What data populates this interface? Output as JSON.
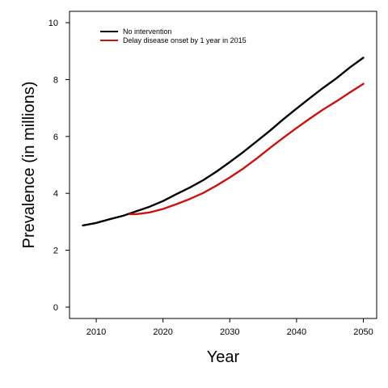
{
  "chart_data": {
    "type": "line",
    "xlabel": "Year",
    "ylabel": "Prevalence (in millions)",
    "xlim": [
      2006,
      2052
    ],
    "ylim": [
      -0.4,
      10.4
    ],
    "xticks": [
      2010,
      2020,
      2030,
      2040,
      2050
    ],
    "yticks": [
      0,
      2,
      4,
      6,
      8,
      10
    ],
    "grid": false,
    "legend_position": "top-left",
    "series": [
      {
        "name": "No intervention",
        "color": "#000000",
        "x": [
          2008,
          2010,
          2012,
          2014,
          2016,
          2018,
          2020,
          2022,
          2024,
          2026,
          2028,
          2030,
          2032,
          2034,
          2036,
          2038,
          2040,
          2042,
          2044,
          2046,
          2048,
          2050
        ],
        "y": [
          2.87,
          2.96,
          3.09,
          3.21,
          3.37,
          3.53,
          3.73,
          3.97,
          4.2,
          4.46,
          4.76,
          5.1,
          5.45,
          5.82,
          6.2,
          6.6,
          6.98,
          7.35,
          7.71,
          8.05,
          8.43,
          8.77
        ]
      },
      {
        "name": "Delay disease onset by 1 year in 2015",
        "color": "#cc1111",
        "x": [
          2015,
          2016,
          2018,
          2020,
          2022,
          2024,
          2026,
          2028,
          2030,
          2032,
          2034,
          2036,
          2038,
          2040,
          2042,
          2044,
          2046,
          2048,
          2050
        ],
        "y": [
          3.27,
          3.27,
          3.33,
          3.45,
          3.62,
          3.8,
          4.01,
          4.27,
          4.56,
          4.87,
          5.22,
          5.59,
          5.95,
          6.3,
          6.63,
          6.95,
          7.24,
          7.55,
          7.85
        ]
      }
    ]
  }
}
